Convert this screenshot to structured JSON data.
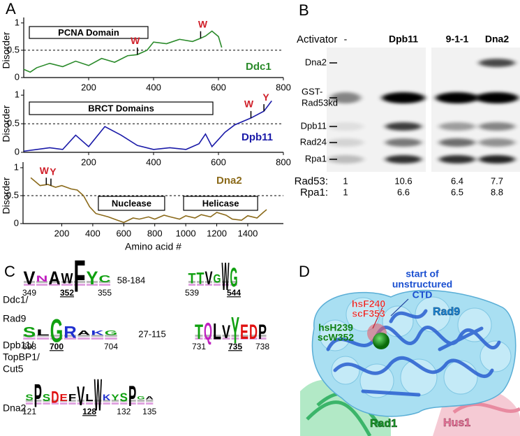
{
  "panel_labels": [
    "A",
    "B",
    "C",
    "D"
  ],
  "chart_data": [
    {
      "type": "line",
      "ylabel": "Disorder",
      "xlim": [
        0,
        800
      ],
      "ylim": [
        0,
        1.1
      ],
      "xticks": [
        200,
        400,
        600,
        800
      ],
      "yticks": [
        0,
        0.5,
        1
      ],
      "reference_line": 0.5,
      "x": [
        0,
        20,
        40,
        80,
        120,
        160,
        200,
        240,
        280,
        320,
        350,
        380,
        400,
        440,
        480,
        520,
        545,
        560,
        580,
        600,
        610
      ],
      "series": [
        {
          "name": "Ddc1",
          "color": "#2a8a2a",
          "values": [
            0.15,
            0.1,
            0.18,
            0.26,
            0.2,
            0.3,
            0.22,
            0.35,
            0.28,
            0.4,
            0.42,
            0.5,
            0.65,
            0.62,
            0.7,
            0.66,
            0.72,
            0.76,
            0.85,
            0.75,
            0.55
          ]
        }
      ],
      "domains": [
        {
          "label": "PCNA Domain",
          "start": 0,
          "end": 400
        }
      ],
      "residue_marks": [
        {
          "text": "W",
          "x": 350
        },
        {
          "text": "W",
          "x": 545
        }
      ]
    },
    {
      "type": "line",
      "ylabel": "Disorder",
      "xlim": [
        0,
        800
      ],
      "ylim": [
        0,
        1.1
      ],
      "xticks": [
        200,
        400,
        600,
        800
      ],
      "yticks": [
        0,
        0.5,
        1
      ],
      "reference_line": 0.5,
      "x": [
        0,
        40,
        80,
        120,
        160,
        200,
        250,
        300,
        350,
        400,
        450,
        500,
        540,
        560,
        580,
        620,
        650,
        700,
        740,
        764
      ],
      "series": [
        {
          "name": "Dpb11",
          "color": "#1a1aa8",
          "values": [
            0.02,
            0.05,
            0.08,
            0.05,
            0.3,
            0.1,
            0.45,
            0.3,
            0.12,
            0.05,
            0.08,
            0.05,
            0.15,
            0.32,
            0.1,
            0.35,
            0.48,
            0.6,
            0.72,
            0.9
          ]
        }
      ],
      "domains": [
        {
          "label": "BRCT Domains",
          "start": 0,
          "end": 600
        }
      ],
      "residue_marks": [
        {
          "text": "W",
          "x": 700
        },
        {
          "text": "Y",
          "x": 740
        }
      ]
    },
    {
      "type": "line",
      "ylabel": "Disorder",
      "xlabel": "Amino acid #",
      "xlim": [
        -50,
        1630
      ],
      "ylim": [
        0,
        1.1
      ],
      "xticks": [
        200,
        400,
        600,
        800,
        1000,
        1200,
        1400
      ],
      "yticks": [
        0,
        0.5,
        1
      ],
      "reference_line": 0.5,
      "x": [
        0,
        60,
        110,
        160,
        200,
        260,
        300,
        340,
        380,
        420,
        500,
        560,
        600,
        660,
        700,
        760,
        800,
        860,
        900,
        960,
        1000,
        1060,
        1100,
        1160,
        1200,
        1260,
        1300,
        1360,
        1400,
        1460,
        1500,
        1522
      ],
      "series": [
        {
          "name": "Dna2",
          "color": "#8b6a1a",
          "values": [
            0.82,
            0.68,
            0.7,
            0.65,
            0.68,
            0.62,
            0.6,
            0.5,
            0.3,
            0.18,
            0.12,
            0.06,
            0.02,
            0.1,
            0.08,
            0.12,
            0.08,
            0.15,
            0.12,
            0.08,
            0.14,
            0.1,
            0.16,
            0.12,
            0.2,
            0.15,
            0.08,
            0.06,
            0.14,
            0.1,
            0.2,
            0.25
          ]
        }
      ],
      "domains": [
        {
          "label": "Nuclease",
          "start": 400,
          "end": 900
        },
        {
          "label": "Helicase",
          "start": 950,
          "end": 1500
        }
      ],
      "residue_marks": [
        {
          "text": "W",
          "x": 100
        },
        {
          "text": "Y",
          "x": 130
        }
      ]
    }
  ],
  "gel": {
    "header": "Activator",
    "lanes": [
      "-",
      "Dpb11",
      "9-1-1",
      "Dna2"
    ],
    "bands": [
      [
        "Dna2"
      ],
      [
        "GST-",
        "Rad53kd"
      ],
      [
        "Dpb11"
      ],
      [
        "Rad24"
      ],
      [
        "Rpa1"
      ]
    ],
    "quantification": [
      {
        "label": "Rad53:",
        "values": [
          "1",
          "10.6",
          "6.4",
          "7.7"
        ]
      },
      {
        "label": "Rpa1:",
        "values": [
          "1",
          "6.6",
          "6.5",
          "8.8"
        ]
      }
    ]
  },
  "logos": [
    {
      "label": [
        "Ddc1/",
        "Rad9"
      ],
      "gap": "58-184",
      "blocks": [
        {
          "letters": [
            "V",
            "N",
            "A",
            "W",
            "F",
            "Y",
            "C"
          ],
          "positions": [
            {
              "text": "349",
              "bold": false
            },
            {
              "text": "352",
              "bold": true
            },
            {
              "text": "355",
              "bold": false
            }
          ]
        },
        {
          "letters": [
            "T",
            "T",
            "V",
            "G",
            "W",
            "G"
          ],
          "positions": [
            {
              "text": "539",
              "bold": false
            },
            {
              "text": "544",
              "bold": true
            }
          ]
        }
      ]
    },
    {
      "label": [
        "Dpb11/",
        "TopBP1/",
        "Cut5"
      ],
      "gap": "27-115",
      "blocks": [
        {
          "letters": [
            "S",
            "L",
            "G",
            "R",
            "A",
            "K",
            "G"
          ],
          "positions": [
            {
              "text": "698",
              "bold": false
            },
            {
              "text": "700",
              "bold": true
            },
            {
              "text": "704",
              "bold": false
            }
          ]
        },
        {
          "letters": [
            "T",
            "Q",
            "L",
            "V",
            "Y",
            "E",
            "D",
            "P"
          ],
          "positions": [
            {
              "text": "731",
              "bold": false
            },
            {
              "text": "735",
              "bold": true
            },
            {
              "text": "738",
              "bold": false
            }
          ]
        }
      ]
    },
    {
      "label": [
        "Dna2"
      ],
      "blocks": [
        {
          "letters": [
            "S",
            "P",
            "S",
            "D",
            "E",
            "F",
            "V",
            "L",
            "W",
            "K",
            "Y",
            "S",
            "P",
            "G",
            "A"
          ],
          "positions": [
            {
              "text": "121",
              "bold": false
            },
            {
              "text": "128",
              "bold": true
            },
            {
              "text": "132",
              "bold": false
            },
            {
              "text": "135",
              "bold": false
            }
          ]
        }
      ]
    }
  ],
  "structure": {
    "ctd_label": [
      "start of",
      "unstructured",
      "CTD"
    ],
    "red_label": [
      "hsF240",
      "scF353"
    ],
    "green_label": [
      "hsH239",
      "scW352"
    ],
    "rad9": "Rad9",
    "rad1": "Rad1",
    "hus1": "Hus1"
  }
}
